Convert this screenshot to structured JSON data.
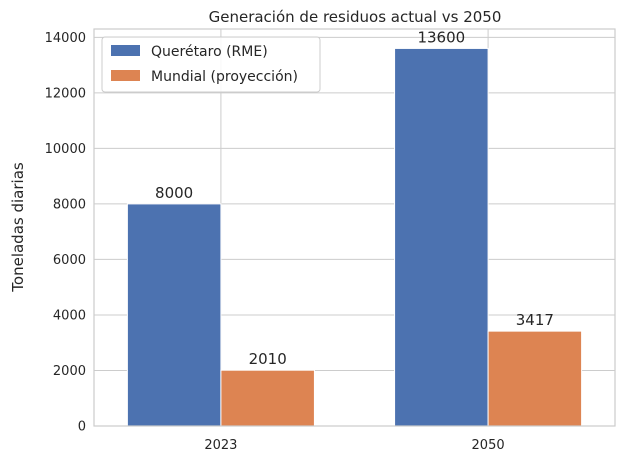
{
  "chart_data": {
    "type": "bar",
    "title": "Generación de residuos actual vs 2050",
    "xlabel": "",
    "ylabel": "Toneladas diarias",
    "categories": [
      "2023",
      "2050"
    ],
    "series": [
      {
        "name": "Querétaro (RME)",
        "values": [
          8000,
          13600
        ],
        "color": "#4c72b0",
        "value_labels": [
          "8000",
          "13600"
        ]
      },
      {
        "name": "Mundial (proyección)",
        "values": [
          2010,
          3417
        ],
        "color": "#dd8452",
        "value_labels": [
          "2010",
          "3417"
        ]
      }
    ],
    "ylim": [
      0,
      14300
    ],
    "yticks": [
      0,
      2000,
      4000,
      6000,
      8000,
      10000,
      12000,
      14000
    ],
    "ytick_labels": [
      "0",
      "2000",
      "4000",
      "6000",
      "8000",
      "10000",
      "12000",
      "14000"
    ],
    "grid": true,
    "legend_position": "top-left"
  }
}
